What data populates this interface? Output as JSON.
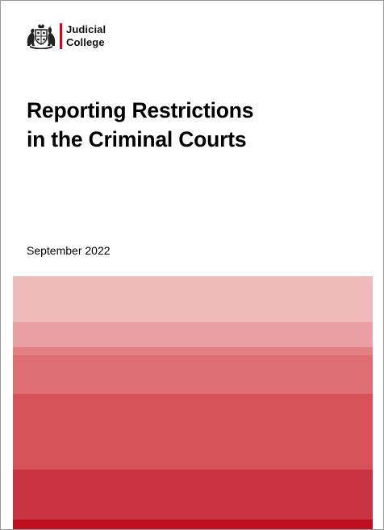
{
  "logo": {
    "line1": "Judicial",
    "line2": "College",
    "accent_color": "#d4021c"
  },
  "title": {
    "line1": "Reporting Restrictions",
    "line2": "in the Criminal Courts"
  },
  "date": "September 2022",
  "band_colors": [
    "#efbaba",
    "#eaa0a2",
    "#e38083",
    "#de6e72",
    "#d65459",
    "#c93443",
    "#bd0f1f"
  ]
}
